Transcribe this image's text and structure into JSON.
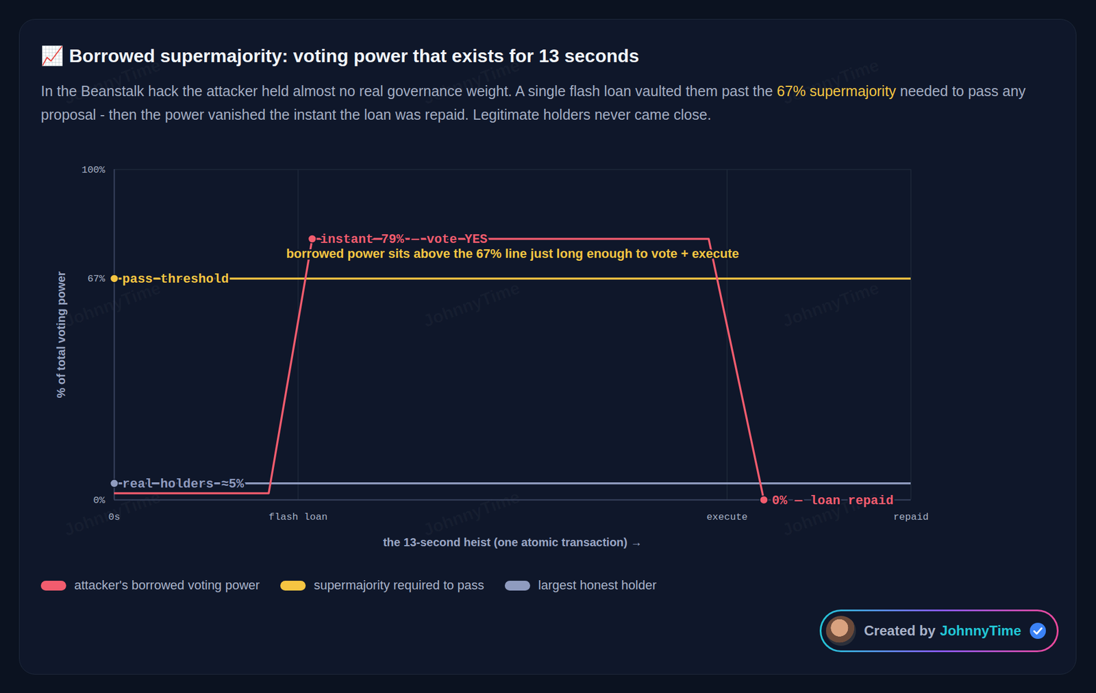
{
  "chart_data": {
    "type": "line",
    "title": "📈 Borrowed supermajority: voting power that exists for 13 seconds",
    "subtitle": "In the Beanstalk hack the attacker held almost no real governance weight. A single flash loan vaulted them past the 67% supermajority needed to pass any proposal - then the power vanished the instant the loan was repaid. Legitimate holders never came close.",
    "subtitle_highlight": "67% supermajority",
    "x_label": "the 13-second heist (one atomic transaction) →",
    "y_label": "% of total voting power",
    "xlim": [
      0,
      13
    ],
    "xticks": [
      {
        "value": 0,
        "label": "0s"
      },
      {
        "value": 3,
        "label": "flash loan"
      },
      {
        "value": 10,
        "label": "execute"
      },
      {
        "value": 13,
        "label": "repaid"
      }
    ],
    "ylim": [
      0,
      100
    ],
    "yticks": [
      {
        "value": 0,
        "label": "0%"
      },
      {
        "value": 67,
        "label": "67%"
      },
      {
        "value": 100,
        "label": "100%"
      }
    ],
    "grid": true,
    "legend": "bottom",
    "series": [
      {
        "name": "attacker's borrowed voting power",
        "color": "#f25c6e",
        "x": [
          0,
          2.52,
          3.23,
          9.7,
          10.6
        ],
        "values": [
          2,
          2,
          79,
          79,
          0
        ],
        "labels": [
          null,
          null,
          "instant 79% — vote YES",
          null,
          "0% — loan repaid"
        ]
      },
      {
        "name": "supermajority required to pass",
        "color": "#f5c542",
        "x": [
          0,
          13
        ],
        "values": [
          67,
          67
        ],
        "labels": [
          "pass threshold",
          null
        ]
      },
      {
        "name": "largest honest holder",
        "color": "#8f9bbf",
        "x": [
          0,
          13
        ],
        "values": [
          5,
          5
        ],
        "labels": [
          "real holders ≈5%",
          null
        ]
      }
    ],
    "annotations": [
      {
        "text": "borrowed power sits above the 67% line just long enough to vote + execute",
        "x": 6.5,
        "y": 74.5,
        "color": "#f5c542"
      }
    ],
    "watermark": "JohnnyTime",
    "credit": {
      "prefix": "Created by",
      "name": "JohnnyTime"
    }
  }
}
